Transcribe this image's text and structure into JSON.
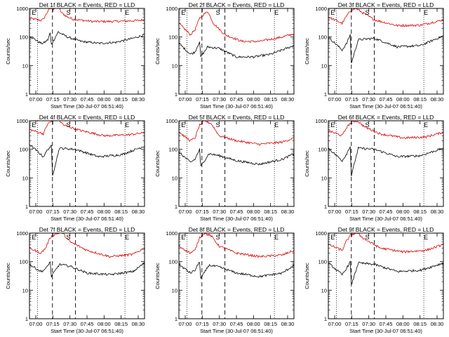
{
  "figure": {
    "start_time": "30-Jul-07 06:51:40"
  },
  "colors": {
    "events": "#000000",
    "lld": "#dd0000",
    "axes": "#000000",
    "background": "#ffffff"
  },
  "chart_data": [
    {
      "type": "line",
      "title": "Det 1f BLACK = Events, RED = LLD",
      "xlabel": "Start Time (30-Jul-07 06:51:40)",
      "ylabel": "Counts/sec",
      "y_scale": "log",
      "ylim": [
        1,
        1000
      ],
      "x_ticks": [
        "07:00",
        "07:15",
        "07:30",
        "07:45",
        "08:00",
        "08:15",
        "08:30"
      ],
      "y_ticks": [
        "1",
        "10",
        "100",
        "1000"
      ],
      "markers": [
        "E",
        "S",
        "E"
      ],
      "series": [
        {
          "color": "red",
          "values": [
            [
              0,
              450
            ],
            [
              10,
              380
            ],
            [
              12,
              420
            ],
            [
              16,
              800
            ],
            [
              18,
              1000
            ],
            [
              20,
              950
            ],
            [
              25,
              1100
            ],
            [
              28,
              700
            ],
            [
              33,
              500
            ],
            [
              38,
              420
            ],
            [
              55,
              350
            ],
            [
              75,
              350
            ],
            [
              95,
              380
            ],
            [
              100,
              400
            ]
          ]
        },
        {
          "color": "black",
          "values": [
            [
              0,
              110
            ],
            [
              10,
              60
            ],
            [
              12,
              60
            ],
            [
              16,
              80
            ],
            [
              18,
              140
            ],
            [
              19,
              55
            ],
            [
              25,
              150
            ],
            [
              33,
              100
            ],
            [
              45,
              70
            ],
            [
              60,
              60
            ],
            [
              75,
              65
            ],
            [
              90,
              90
            ],
            [
              100,
              120
            ]
          ]
        }
      ]
    },
    {
      "type": "line",
      "title": "Det 2f BLACK = Events, RED = LLD",
      "xlabel": "Start Time (30-Jul-07 06:51:40)",
      "ylabel": "Counts/sec",
      "y_scale": "log",
      "ylim": [
        1,
        1000
      ],
      "x_ticks": [
        "07:00",
        "07:15",
        "07:30",
        "07:45",
        "08:00",
        "08:15",
        "08:30"
      ],
      "y_ticks": [
        "1",
        "10",
        "100",
        "1000"
      ],
      "markers": [
        "E",
        "S",
        "E"
      ],
      "series": [
        {
          "color": "red",
          "values": [
            [
              0,
              300
            ],
            [
              10,
              120
            ],
            [
              14,
              180
            ],
            [
              18,
              450
            ],
            [
              20,
              550
            ],
            [
              25,
              800
            ],
            [
              30,
              300
            ],
            [
              40,
              120
            ],
            [
              55,
              70
            ],
            [
              70,
              70
            ],
            [
              90,
              100
            ],
            [
              100,
              130
            ]
          ]
        },
        {
          "color": "black",
          "values": [
            [
              0,
              60
            ],
            [
              10,
              25
            ],
            [
              14,
              30
            ],
            [
              18,
              70
            ],
            [
              19,
              20
            ],
            [
              25,
              45
            ],
            [
              35,
              40
            ],
            [
              50,
              20
            ],
            [
              65,
              20
            ],
            [
              80,
              25
            ],
            [
              100,
              50
            ]
          ]
        }
      ]
    },
    {
      "type": "line",
      "title": "Det 3f BLACK = Events, RED = LLD",
      "xlabel": "Start Time (30-Jul-07 06:51:40)",
      "ylabel": "Counts/sec",
      "y_scale": "log",
      "ylim": [
        1,
        1000
      ],
      "x_ticks": [
        "07:00",
        "07:15",
        "07:30",
        "07:45",
        "08:00",
        "08:15",
        "08:30"
      ],
      "y_ticks": [
        "1",
        "10",
        "100",
        "1000"
      ],
      "markers": [
        "E",
        "S",
        "E"
      ],
      "series": [
        {
          "color": "red",
          "values": [
            [
              0,
              500
            ],
            [
              12,
              300
            ],
            [
              16,
              550
            ],
            [
              20,
              900
            ],
            [
              24,
              1000
            ],
            [
              30,
              700
            ],
            [
              40,
              400
            ],
            [
              60,
              250
            ],
            [
              80,
              260
            ],
            [
              100,
              400
            ]
          ]
        },
        {
          "color": "black",
          "values": [
            [
              0,
              100
            ],
            [
              12,
              35
            ],
            [
              16,
              60
            ],
            [
              19,
              120
            ],
            [
              20,
              12
            ],
            [
              26,
              80
            ],
            [
              40,
              90
            ],
            [
              60,
              45
            ],
            [
              80,
              50
            ],
            [
              100,
              110
            ]
          ]
        }
      ]
    },
    {
      "type": "line",
      "title": "Det 4f BLACK = Events, RED = LLD",
      "xlabel": "Start Time (30-Jul-07 06:51:40)",
      "ylabel": "Counts/sec",
      "y_scale": "log",
      "ylim": [
        1,
        1000
      ],
      "x_ticks": [
        "07:00",
        "07:15",
        "07:30",
        "07:45",
        "08:00",
        "08:15",
        "08:30"
      ],
      "y_ticks": [
        "1",
        "10",
        "100",
        "1000"
      ],
      "markers": [
        "E",
        "S",
        "E"
      ],
      "series": [
        {
          "color": "red",
          "values": [
            [
              0,
              500
            ],
            [
              12,
              350
            ],
            [
              16,
              800
            ],
            [
              20,
              1000
            ],
            [
              25,
              1100
            ],
            [
              30,
              700
            ],
            [
              45,
              450
            ],
            [
              65,
              300
            ],
            [
              85,
              320
            ],
            [
              100,
              380
            ]
          ]
        },
        {
          "color": "black",
          "values": [
            [
              0,
              150
            ],
            [
              12,
              55
            ],
            [
              16,
              100
            ],
            [
              19,
              130
            ],
            [
              20,
              12
            ],
            [
              26,
              110
            ],
            [
              40,
              100
            ],
            [
              60,
              55
            ],
            [
              80,
              65
            ],
            [
              100,
              130
            ]
          ]
        }
      ]
    },
    {
      "type": "line",
      "title": "Det 5f BLACK = Events, RED = LLD",
      "xlabel": "Start Time (30-Jul-07 06:51:40)",
      "ylabel": "Counts/sec",
      "y_scale": "log",
      "ylim": [
        1,
        1000
      ],
      "x_ticks": [
        "07:00",
        "07:15",
        "07:30",
        "07:45",
        "08:00",
        "08:15",
        "08:30"
      ],
      "y_ticks": [
        "1",
        "10",
        "100",
        "1000"
      ],
      "markers": [
        "E",
        "S",
        "E"
      ],
      "series": [
        {
          "color": "red",
          "values": [
            [
              0,
              400
            ],
            [
              10,
              200
            ],
            [
              14,
              250
            ],
            [
              18,
              700
            ],
            [
              22,
              1000
            ],
            [
              28,
              800
            ],
            [
              35,
              300
            ],
            [
              50,
              200
            ],
            [
              70,
              150
            ],
            [
              90,
              180
            ],
            [
              100,
              250
            ]
          ]
        },
        {
          "color": "black",
          "values": [
            [
              0,
              80
            ],
            [
              10,
              35
            ],
            [
              14,
              45
            ],
            [
              18,
              100
            ],
            [
              19,
              25
            ],
            [
              26,
              70
            ],
            [
              35,
              60
            ],
            [
              50,
              40
            ],
            [
              70,
              30
            ],
            [
              90,
              45
            ],
            [
              100,
              70
            ]
          ]
        }
      ]
    },
    {
      "type": "line",
      "title": "Det 6f BLACK = Events, RED = LLD",
      "xlabel": "Start Time (30-Jul-07 06:51:40)",
      "ylabel": "Counts/sec",
      "y_scale": "log",
      "ylim": [
        1,
        1000
      ],
      "x_ticks": [
        "07:00",
        "07:15",
        "07:30",
        "07:45",
        "08:00",
        "08:15",
        "08:30"
      ],
      "y_ticks": [
        "1",
        "10",
        "100",
        "1000"
      ],
      "markers": [
        "E",
        "S",
        "E"
      ],
      "series": [
        {
          "color": "red",
          "values": [
            [
              0,
              450
            ],
            [
              12,
              300
            ],
            [
              16,
              600
            ],
            [
              20,
              900
            ],
            [
              25,
              1000
            ],
            [
              32,
              600
            ],
            [
              45,
              350
            ],
            [
              65,
              250
            ],
            [
              85,
              270
            ],
            [
              100,
              400
            ]
          ]
        },
        {
          "color": "black",
          "values": [
            [
              0,
              110
            ],
            [
              12,
              40
            ],
            [
              16,
              70
            ],
            [
              19,
              130
            ],
            [
              20,
              12
            ],
            [
              26,
              110
            ],
            [
              40,
              100
            ],
            [
              60,
              55
            ],
            [
              80,
              60
            ],
            [
              100,
              110
            ]
          ]
        }
      ]
    },
    {
      "type": "line",
      "title": "Det 7f BLACK = Events, RED = LLD",
      "xlabel": "Start Time (30-Jul-07 06:51:40)",
      "ylabel": "Counts/sec",
      "y_scale": "log",
      "ylim": [
        1,
        1000
      ],
      "x_ticks": [
        "07:00",
        "07:15",
        "07:30",
        "07:45",
        "08:00",
        "08:15",
        "08:30"
      ],
      "y_ticks": [
        "1",
        "10",
        "100",
        "1000"
      ],
      "markers": [
        "E",
        "S",
        "E"
      ],
      "series": [
        {
          "color": "red",
          "values": [
            [
              0,
              300
            ],
            [
              10,
              200
            ],
            [
              14,
              300
            ],
            [
              18,
              700
            ],
            [
              22,
              900
            ],
            [
              28,
              1100
            ],
            [
              35,
              500
            ],
            [
              50,
              250
            ],
            [
              70,
              150
            ],
            [
              90,
              180
            ],
            [
              100,
              300
            ]
          ]
        },
        {
          "color": "black",
          "values": [
            [
              0,
              80
            ],
            [
              10,
              45
            ],
            [
              14,
              55
            ],
            [
              18,
              100
            ],
            [
              19,
              30
            ],
            [
              26,
              80
            ],
            [
              35,
              70
            ],
            [
              50,
              40
            ],
            [
              70,
              35
            ],
            [
              90,
              45
            ],
            [
              100,
              90
            ]
          ]
        }
      ]
    },
    {
      "type": "line",
      "title": "Det 8f BLACK = Events, RED = LLD",
      "xlabel": "Start Time (30-Jul-07 06:51:40)",
      "ylabel": "Counts/sec",
      "y_scale": "log",
      "ylim": [
        1,
        1000
      ],
      "x_ticks": [
        "07:00",
        "07:15",
        "07:30",
        "07:45",
        "08:00",
        "08:15",
        "08:30"
      ],
      "y_ticks": [
        "1",
        "10",
        "100",
        "1000"
      ],
      "markers": [
        "E",
        "S",
        "E"
      ],
      "series": [
        {
          "color": "red",
          "values": [
            [
              0,
              350
            ],
            [
              10,
              200
            ],
            [
              14,
              250
            ],
            [
              18,
              700
            ],
            [
              22,
              1000
            ],
            [
              28,
              800
            ],
            [
              35,
              350
            ],
            [
              50,
              200
            ],
            [
              70,
              150
            ],
            [
              90,
              170
            ],
            [
              100,
              250
            ]
          ]
        },
        {
          "color": "black",
          "values": [
            [
              0,
              80
            ],
            [
              10,
              40
            ],
            [
              14,
              50
            ],
            [
              18,
              100
            ],
            [
              19,
              25
            ],
            [
              26,
              75
            ],
            [
              35,
              65
            ],
            [
              50,
              40
            ],
            [
              70,
              30
            ],
            [
              90,
              40
            ],
            [
              100,
              75
            ]
          ]
        }
      ]
    },
    {
      "type": "line",
      "title": "Det 9f BLACK = Events, RED = LLD",
      "xlabel": "Start Time (30-Jul-07 06:51:40)",
      "ylabel": "Counts/sec",
      "y_scale": "log",
      "ylim": [
        1,
        1000
      ],
      "x_ticks": [
        "07:00",
        "07:15",
        "07:30",
        "07:45",
        "08:00",
        "08:15",
        "08:30"
      ],
      "y_ticks": [
        "1",
        "10",
        "100",
        "1000"
      ],
      "markers": [
        "E",
        "S",
        "E"
      ],
      "series": [
        {
          "color": "red",
          "values": [
            [
              0,
              400
            ],
            [
              12,
              250
            ],
            [
              16,
              550
            ],
            [
              20,
              900
            ],
            [
              25,
              1000
            ],
            [
              32,
              600
            ],
            [
              45,
              300
            ],
            [
              65,
              220
            ],
            [
              85,
              250
            ],
            [
              100,
              400
            ]
          ]
        },
        {
          "color": "black",
          "values": [
            [
              0,
              90
            ],
            [
              12,
              35
            ],
            [
              16,
              60
            ],
            [
              19,
              100
            ],
            [
              20,
              15
            ],
            [
              26,
              90
            ],
            [
              40,
              80
            ],
            [
              60,
              45
            ],
            [
              80,
              50
            ],
            [
              100,
              90
            ]
          ]
        }
      ]
    }
  ]
}
